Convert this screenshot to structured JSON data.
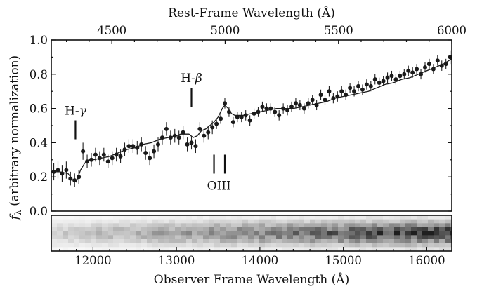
{
  "chart_data": {
    "type": "scatter",
    "xlabel": "Observer Frame Wavelength (Å)",
    "ylabel": "f_λ (arbitrary normalization)",
    "ylabel_symbol": "f",
    "ylabel_subscript": "λ",
    "ylabel_rest": " (arbitrary normalization)",
    "x2label": "Rest-Frame Wavelength (Å)",
    "xlim": [
      11500,
      16300
    ],
    "ylim": [
      0.0,
      1.0
    ],
    "x2lim": [
      4233,
      6000
    ],
    "xticks": [
      "12000",
      "13000",
      "14000",
      "15000",
      "16000"
    ],
    "xtick_values": [
      12000,
      13000,
      14000,
      15000,
      16000
    ],
    "yticks": [
      "0.0",
      "0.2",
      "0.4",
      "0.6",
      "0.8",
      "1.0"
    ],
    "ytick_values": [
      0.0,
      0.2,
      0.4,
      0.6,
      0.8,
      1.0
    ],
    "x2ticks": [
      "4500",
      "5000",
      "5500",
      "6000"
    ],
    "x2tick_values": [
      4500,
      5000,
      5500,
      6000
    ],
    "grid": false,
    "annotations": [
      {
        "text": "H-γ",
        "prefix": "H-",
        "symbol": "γ",
        "x": 11790,
        "y": 0.42,
        "position": "above"
      },
      {
        "text": "H-β",
        "prefix": "H-",
        "symbol": "β",
        "x": 13180,
        "y": 0.61,
        "position": "above"
      },
      {
        "text": "OIII",
        "prefix": "OIII",
        "symbol": "",
        "x": 13510,
        "y": 0.33,
        "position": "below",
        "lines": [
          13450,
          13580
        ]
      }
    ],
    "series": [
      {
        "kind": "points",
        "x": [
          11530,
          11580,
          11630,
          11680,
          11730,
          11780,
          11830,
          11880,
          11930,
          11980,
          12030,
          12080,
          12130,
          12180,
          12230,
          12280,
          12330,
          12380,
          12430,
          12480,
          12530,
          12580,
          12630,
          12680,
          12730,
          12780,
          12830,
          12880,
          12930,
          12980,
          13030,
          13080,
          13130,
          13180,
          13230,
          13280,
          13330,
          13380,
          13430,
          13480,
          13530,
          13580,
          13630,
          13680,
          13730,
          13780,
          13830,
          13880,
          13930,
          13980,
          14030,
          14080,
          14130,
          14180,
          14230,
          14280,
          14330,
          14380,
          14430,
          14480,
          14530,
          14580,
          14630,
          14680,
          14730,
          14780,
          14830,
          14880,
          14930,
          14980,
          15030,
          15080,
          15130,
          15180,
          15230,
          15280,
          15330,
          15380,
          15430,
          15480,
          15530,
          15580,
          15630,
          15680,
          15730,
          15780,
          15830,
          15880,
          15930,
          15980,
          16030,
          16080,
          16130,
          16180,
          16230,
          16280
        ],
        "y": [
          0.23,
          0.24,
          0.22,
          0.24,
          0.19,
          0.18,
          0.2,
          0.35,
          0.29,
          0.3,
          0.33,
          0.31,
          0.33,
          0.29,
          0.31,
          0.33,
          0.32,
          0.36,
          0.38,
          0.38,
          0.37,
          0.39,
          0.34,
          0.31,
          0.35,
          0.39,
          0.43,
          0.48,
          0.43,
          0.44,
          0.43,
          0.46,
          0.39,
          0.4,
          0.38,
          0.48,
          0.44,
          0.46,
          0.49,
          0.51,
          0.54,
          0.63,
          0.58,
          0.52,
          0.55,
          0.55,
          0.56,
          0.53,
          0.57,
          0.58,
          0.61,
          0.6,
          0.6,
          0.58,
          0.56,
          0.6,
          0.59,
          0.61,
          0.63,
          0.62,
          0.6,
          0.63,
          0.65,
          0.62,
          0.68,
          0.65,
          0.7,
          0.66,
          0.67,
          0.7,
          0.68,
          0.72,
          0.7,
          0.73,
          0.71,
          0.74,
          0.73,
          0.77,
          0.75,
          0.76,
          0.78,
          0.79,
          0.77,
          0.79,
          0.8,
          0.82,
          0.81,
          0.83,
          0.8,
          0.84,
          0.86,
          0.83,
          0.88,
          0.85,
          0.86,
          0.9
        ],
        "err": [
          0.05,
          0.05,
          0.05,
          0.05,
          0.04,
          0.04,
          0.04,
          0.05,
          0.04,
          0.04,
          0.04,
          0.04,
          0.04,
          0.04,
          0.04,
          0.04,
          0.04,
          0.04,
          0.04,
          0.04,
          0.04,
          0.04,
          0.04,
          0.04,
          0.04,
          0.04,
          0.04,
          0.04,
          0.04,
          0.04,
          0.04,
          0.04,
          0.04,
          0.04,
          0.04,
          0.04,
          0.04,
          0.04,
          0.04,
          0.03,
          0.03,
          0.03,
          0.03,
          0.03,
          0.03,
          0.03,
          0.03,
          0.03,
          0.03,
          0.03,
          0.03,
          0.03,
          0.03,
          0.03,
          0.03,
          0.03,
          0.03,
          0.03,
          0.03,
          0.03,
          0.03,
          0.03,
          0.03,
          0.03,
          0.03,
          0.03,
          0.03,
          0.03,
          0.03,
          0.03,
          0.03,
          0.03,
          0.03,
          0.03,
          0.03,
          0.03,
          0.03,
          0.03,
          0.03,
          0.03,
          0.03,
          0.03,
          0.03,
          0.03,
          0.03,
          0.03,
          0.03,
          0.03,
          0.03,
          0.03,
          0.03,
          0.03,
          0.03,
          0.03,
          0.03,
          0.04
        ]
      },
      {
        "kind": "line",
        "x": [
          11500,
          11600,
          11700,
          11760,
          11800,
          11850,
          11900,
          11950,
          12000,
          12100,
          12200,
          12300,
          12400,
          12500,
          12600,
          12700,
          12800,
          12900,
          13000,
          13050,
          13100,
          13150,
          13200,
          13250,
          13300,
          13350,
          13400,
          13450,
          13500,
          13550,
          13580,
          13620,
          13660,
          13700,
          13800,
          13900,
          14000,
          14100,
          14200,
          14300,
          14400,
          14500,
          14600,
          14700,
          14800,
          14900,
          15000,
          15100,
          15200,
          15300,
          15400,
          15500,
          15600,
          15700,
          15800,
          15900,
          16000,
          16100,
          16200,
          16300
        ],
        "y": [
          0.23,
          0.23,
          0.22,
          0.18,
          0.17,
          0.24,
          0.28,
          0.3,
          0.3,
          0.31,
          0.32,
          0.34,
          0.36,
          0.37,
          0.39,
          0.4,
          0.42,
          0.43,
          0.44,
          0.45,
          0.45,
          0.45,
          0.43,
          0.44,
          0.47,
          0.48,
          0.5,
          0.52,
          0.55,
          0.6,
          0.62,
          0.6,
          0.57,
          0.56,
          0.56,
          0.57,
          0.58,
          0.59,
          0.6,
          0.6,
          0.6,
          0.61,
          0.62,
          0.63,
          0.64,
          0.66,
          0.67,
          0.68,
          0.69,
          0.7,
          0.72,
          0.74,
          0.75,
          0.77,
          0.78,
          0.8,
          0.82,
          0.84,
          0.86,
          0.89
        ]
      }
    ],
    "spectrum_2d": {
      "rows": 9,
      "intensity_profile": [
        0.15,
        0.35,
        0.6,
        0.85,
        1.0,
        0.85,
        0.6,
        0.35,
        0.15
      ],
      "trend": "increasing with wavelength"
    }
  }
}
